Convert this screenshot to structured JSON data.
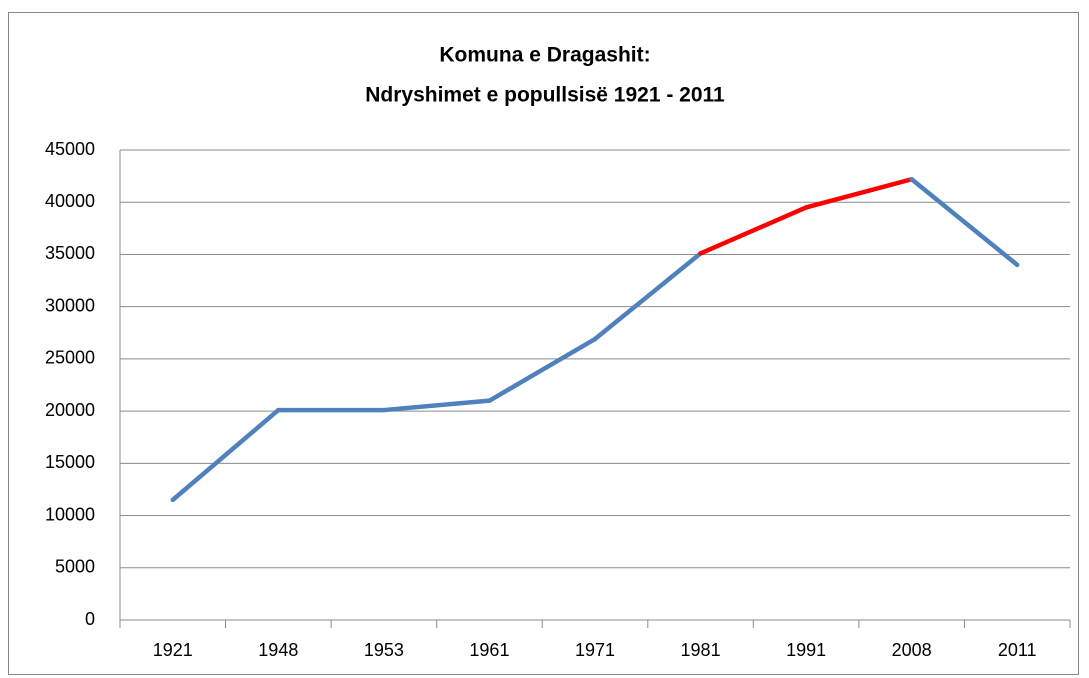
{
  "chart_data": {
    "type": "line",
    "title": [
      "Komuna e Dragashit:",
      "Ndryshimet e popullsisë 1921 - 2011"
    ],
    "categories": [
      "1921",
      "1948",
      "1953",
      "1961",
      "1971",
      "1981",
      "1991",
      "2008",
      "2011"
    ],
    "values": [
      11500,
      20100,
      20100,
      21000,
      26900,
      35100,
      39500,
      42200,
      34000
    ],
    "segment_colors": [
      "#4f81bd",
      "#4f81bd",
      "#4f81bd",
      "#4f81bd",
      "#4f81bd",
      "#ff0000",
      "#ff0000",
      "#4f81bd"
    ],
    "ylim": [
      0,
      45000
    ],
    "yticks": [
      0,
      5000,
      10000,
      15000,
      20000,
      25000,
      30000,
      35000,
      40000,
      45000
    ],
    "grid": true
  }
}
